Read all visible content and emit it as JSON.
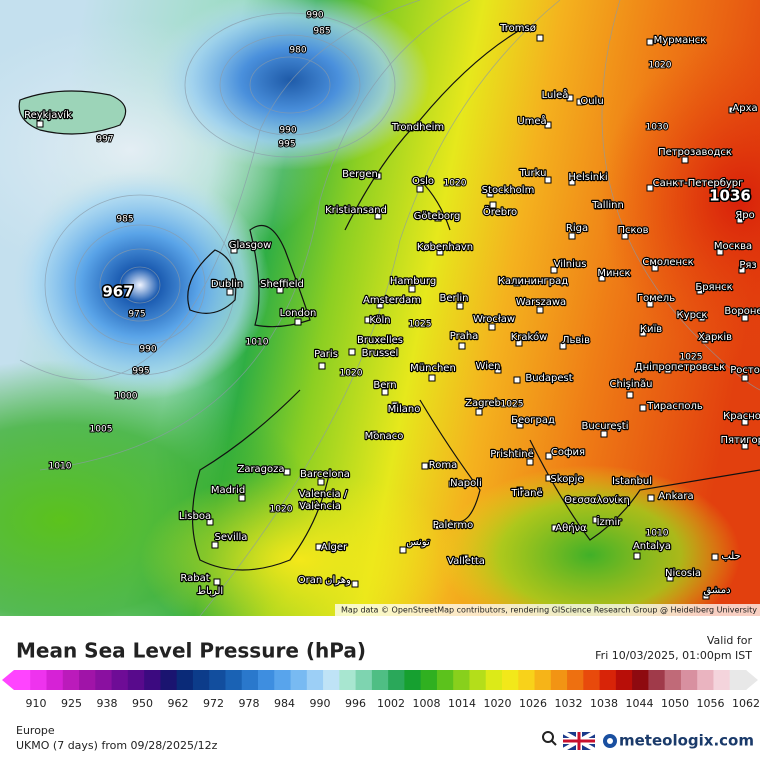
{
  "map": {
    "attribution": "Map data © OpenStreetMap contributors, rendering GIScience Research Group @ Heidelberg University",
    "isobar_labels": [
      990,
      985,
      980,
      990,
      995,
      997,
      985,
      967,
      975,
      990,
      995,
      1000,
      1005,
      1010,
      1010,
      1020,
      1020,
      1020,
      1025,
      1025,
      1025,
      1030,
      1036,
      1020,
      1010
    ],
    "cities": [
      "Tromsø",
      "Мурманск",
      "Luleå",
      "Oulu",
      "Арха",
      "Umeå",
      "Trondheim",
      "Петрозаводск",
      "Reykjavík",
      "Bergen",
      "Oslo",
      "Turku",
      "Helsinki",
      "Санкт-Петербург",
      "Stockholm",
      "Örebro",
      "Kristiansand",
      "Göteborg",
      "Tallinn",
      "Яро",
      "Riga",
      "Псков",
      "København",
      "Glasgow",
      "Москва",
      "Vilnius",
      "Смоленск",
      "Ряз",
      "Hamburg",
      "Калининград",
      "Минск",
      "Dublin",
      "Sheffield",
      "Брянск",
      "Amsterdam",
      "Berlin",
      "Warszawa",
      "Гомель",
      "London",
      "Köln",
      "Wrocław",
      "Курск",
      "Воронеж",
      "Bruxelles",
      "Brussel",
      "Praha",
      "Kraków",
      "Львів",
      "Київ",
      "Харків",
      "Paris",
      "München",
      "Wien",
      "Дніпропетровськ",
      "Ростов",
      "Bern",
      "Budapest",
      "Chişinău",
      "Milano",
      "Zagreb",
      "Тирасполь",
      "Красно",
      "Monaco",
      "Београд",
      "Bucureşti",
      "Пятигорск",
      "Prishtinë",
      "София",
      "Roma",
      "Zaragoza",
      "Barcelona",
      "Skopje",
      "Istanbul",
      "Madrid",
      "Napoli",
      "Tiranë",
      "Θεσσαλονίκη",
      "Ankara",
      "Valencia /",
      "València",
      "Lisboa",
      "İzmir",
      "Palermo",
      "Sevilla",
      "Αθήνα",
      "Antalya",
      "Alger",
      "تونس",
      "Valletta",
      "حلب",
      "Rabat",
      "الرباط",
      "Oran",
      "وهران",
      "Nicosia",
      "دمشق"
    ]
  },
  "legend": {
    "title": "Mean Sea Level Pressure (hPa)",
    "valid_label": "Valid for",
    "valid_time": "Fri 10/03/2025, 01:00pm IST",
    "colors": [
      "#ff44ff",
      "#ee33ee",
      "#d622d6",
      "#bb1bbb",
      "#a014a8",
      "#8a10a0",
      "#6e0c96",
      "#580a8c",
      "#3c0a80",
      "#1a1470",
      "#0a2a78",
      "#0c3c8a",
      "#124e9e",
      "#1a62b4",
      "#2a78cc",
      "#3e8ee0",
      "#58a4ec",
      "#78baf2",
      "#9ccff6",
      "#bfe3f6",
      "#a8e6d0",
      "#7ed4b0",
      "#4fbe84",
      "#2aa85a",
      "#16a030",
      "#30b020",
      "#5cc21c",
      "#88d01c",
      "#b4de1a",
      "#dcea18",
      "#f2e81a",
      "#f8d21a",
      "#f6b418",
      "#f29414",
      "#ee7010",
      "#e84a0c",
      "#d82408",
      "#b80e08",
      "#8e0a10",
      "#a03a4a",
      "#c06a78",
      "#d890a0",
      "#eab4c0",
      "#f4d4dc",
      "#e8e8e8"
    ],
    "ticks": [
      910,
      925,
      938,
      950,
      962,
      972,
      978,
      984,
      990,
      996,
      1002,
      1008,
      1014,
      1020,
      1026,
      1032,
      1038,
      1044,
      1050,
      1056,
      1062
    ]
  },
  "footer": {
    "region": "Europe",
    "run": "UKMO (7 days) from 09/28/2025/12z",
    "brand": "meteologix.com"
  }
}
